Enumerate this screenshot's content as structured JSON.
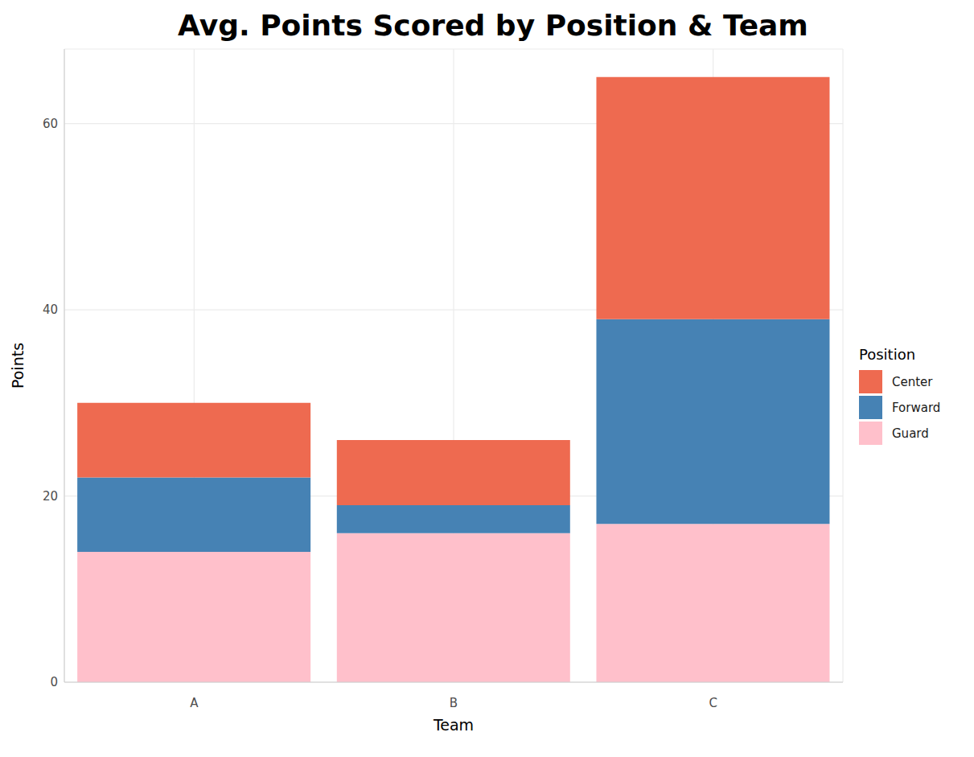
{
  "chart_data": {
    "type": "bar",
    "title": "Avg. Points Scored by Position & Team",
    "x_label": "Team",
    "y_label": "Points",
    "legend_title": "Position",
    "categories": [
      "A",
      "B",
      "C"
    ],
    "series": [
      {
        "name": "Center",
        "color": "#ee6a50",
        "values": [
          8,
          7,
          26
        ]
      },
      {
        "name": "Forward",
        "color": "#4682b4",
        "values": [
          8,
          3,
          22
        ]
      },
      {
        "name": "Guard",
        "color": "#ffc0cb",
        "values": [
          14,
          16,
          17
        ]
      }
    ],
    "stacked": true,
    "ylim": [
      0,
      68
    ],
    "yticks": [
      0,
      20,
      40,
      60
    ],
    "grid": true,
    "legend": "right"
  }
}
